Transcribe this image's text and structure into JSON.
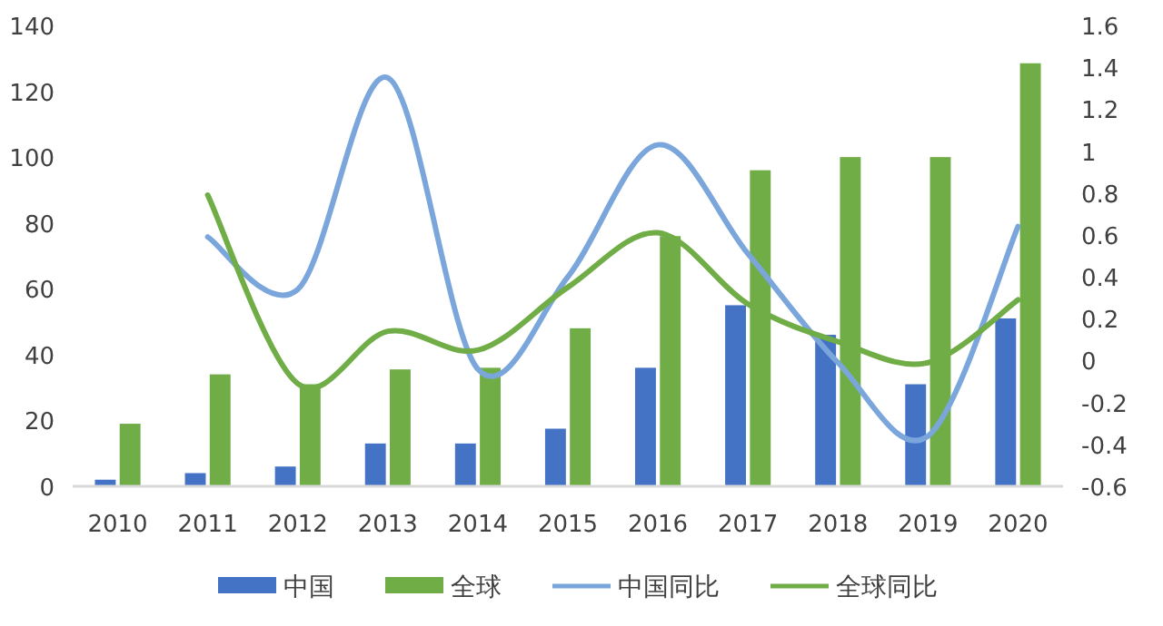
{
  "chart_data": {
    "type": "bar",
    "categories": [
      "2010",
      "2011",
      "2012",
      "2013",
      "2014",
      "2015",
      "2016",
      "2017",
      "2018",
      "2019",
      "2020"
    ],
    "series": [
      {
        "name": "中国",
        "color": "#4472c4",
        "values": [
          2,
          4,
          6,
          13,
          13,
          17.5,
          36,
          55,
          46,
          31,
          51
        ]
      },
      {
        "name": "全球",
        "color": "#70ad47",
        "values": [
          19,
          34,
          31,
          35.5,
          36,
          48,
          76,
          96,
          100,
          100,
          128.5
        ]
      },
      {
        "name": "中国同比",
        "type": "line",
        "axis": "y2",
        "color": "#7aa6dc",
        "values": [
          null,
          0.59,
          0.34,
          1.35,
          -0.04,
          0.4,
          1.03,
          0.51,
          -0.01,
          -0.36,
          0.64
        ]
      },
      {
        "name": "全球同比",
        "type": "line",
        "axis": "y2",
        "color": "#70ad47",
        "values": [
          null,
          0.79,
          -0.11,
          0.14,
          0.05,
          0.35,
          0.61,
          0.27,
          0.09,
          -0.01,
          0.29
        ]
      }
    ],
    "ylim": [
      0,
      140
    ],
    "yticks": [
      0,
      20,
      40,
      60,
      80,
      100,
      120,
      140
    ],
    "y2lim": [
      -0.6,
      1.6
    ],
    "y2ticks": [
      -0.6,
      -0.4,
      -0.2,
      0,
      0.2,
      0.4,
      0.6,
      0.8,
      1,
      1.2,
      1.4,
      1.6
    ],
    "legend": "bottom",
    "grid": false,
    "marker": "none",
    "line_style": "solid"
  }
}
